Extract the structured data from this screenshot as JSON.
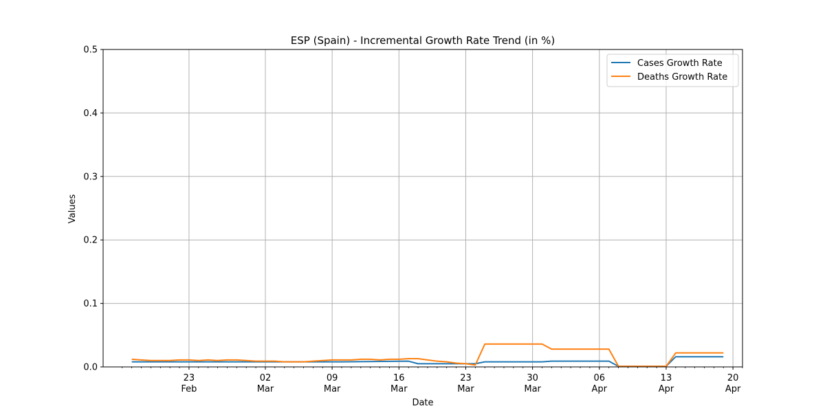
{
  "chart_data": {
    "type": "line",
    "title": "ESP (Spain) - Incremental Growth Rate Trend (in %)",
    "xlabel": "Date",
    "ylabel": "Values",
    "ylim": [
      0,
      0.5
    ],
    "xlim": [
      "2020-02-14",
      "2020-04-21"
    ],
    "grid": true,
    "legend_position": "top-right",
    "yticks": [
      "0.0",
      "0.1",
      "0.2",
      "0.3",
      "0.4",
      "0.5"
    ],
    "xticks": [
      {
        "date": "2020-02-23",
        "day": "23",
        "month": "Feb"
      },
      {
        "date": "2020-03-02",
        "day": "02",
        "month": "Mar"
      },
      {
        "date": "2020-03-09",
        "day": "09",
        "month": "Mar"
      },
      {
        "date": "2020-03-16",
        "day": "16",
        "month": "Mar"
      },
      {
        "date": "2020-03-23",
        "day": "23",
        "month": "Mar"
      },
      {
        "date": "2020-03-30",
        "day": "30",
        "month": "Mar"
      },
      {
        "date": "2020-04-06",
        "day": "06",
        "month": "Apr"
      },
      {
        "date": "2020-04-13",
        "day": "13",
        "month": "Apr"
      },
      {
        "date": "2020-04-20",
        "day": "20",
        "month": "Apr"
      }
    ],
    "series": [
      {
        "name": "Cases Growth Rate",
        "color": "#1f77b4",
        "points": [
          [
            "2020-02-17",
            0.008
          ],
          [
            "2020-02-23",
            0.008
          ],
          [
            "2020-03-01",
            0.008
          ],
          [
            "2020-03-05",
            0.008
          ],
          [
            "2020-03-10",
            0.008
          ],
          [
            "2020-03-17",
            0.009
          ],
          [
            "2020-03-18",
            0.005
          ],
          [
            "2020-03-22",
            0.005
          ],
          [
            "2020-03-24",
            0.005
          ],
          [
            "2020-03-25",
            0.008
          ],
          [
            "2020-03-31",
            0.008
          ],
          [
            "2020-04-01",
            0.009
          ],
          [
            "2020-04-07",
            0.009
          ],
          [
            "2020-04-08",
            0.001
          ],
          [
            "2020-04-13",
            0.001
          ],
          [
            "2020-04-14",
            0.016
          ],
          [
            "2020-04-19",
            0.016
          ]
        ]
      },
      {
        "name": "Deaths Growth Rate",
        "color": "#ff7f0e",
        "points": [
          [
            "2020-02-17",
            0.012
          ],
          [
            "2020-02-18",
            0.011
          ],
          [
            "2020-02-19",
            0.01
          ],
          [
            "2020-02-20",
            0.01
          ],
          [
            "2020-02-21",
            0.01
          ],
          [
            "2020-02-22",
            0.011
          ],
          [
            "2020-02-23",
            0.011
          ],
          [
            "2020-02-24",
            0.01
          ],
          [
            "2020-02-25",
            0.011
          ],
          [
            "2020-02-26",
            0.01
          ],
          [
            "2020-02-27",
            0.011
          ],
          [
            "2020-02-28",
            0.011
          ],
          [
            "2020-02-29",
            0.01
          ],
          [
            "2020-03-01",
            0.009
          ],
          [
            "2020-03-02",
            0.009
          ],
          [
            "2020-03-03",
            0.009
          ],
          [
            "2020-03-04",
            0.008
          ],
          [
            "2020-03-05",
            0.008
          ],
          [
            "2020-03-06",
            0.008
          ],
          [
            "2020-03-07",
            0.009
          ],
          [
            "2020-03-08",
            0.01
          ],
          [
            "2020-03-09",
            0.011
          ],
          [
            "2020-03-10",
            0.011
          ],
          [
            "2020-03-11",
            0.011
          ],
          [
            "2020-03-12",
            0.012
          ],
          [
            "2020-03-13",
            0.012
          ],
          [
            "2020-03-14",
            0.011
          ],
          [
            "2020-03-15",
            0.012
          ],
          [
            "2020-03-16",
            0.012
          ],
          [
            "2020-03-17",
            0.013
          ],
          [
            "2020-03-18",
            0.013
          ],
          [
            "2020-03-19",
            0.011
          ],
          [
            "2020-03-20",
            0.009
          ],
          [
            "2020-03-21",
            0.008
          ],
          [
            "2020-03-22",
            0.006
          ],
          [
            "2020-03-23",
            0.005
          ],
          [
            "2020-03-24",
            0.003
          ],
          [
            "2020-03-25",
            0.036
          ],
          [
            "2020-03-31",
            0.036
          ],
          [
            "2020-04-01",
            0.028
          ],
          [
            "2020-04-07",
            0.028
          ],
          [
            "2020-04-08",
            0.001
          ],
          [
            "2020-04-13",
            0.001
          ],
          [
            "2020-04-14",
            0.022
          ],
          [
            "2020-04-19",
            0.022
          ]
        ]
      }
    ]
  }
}
